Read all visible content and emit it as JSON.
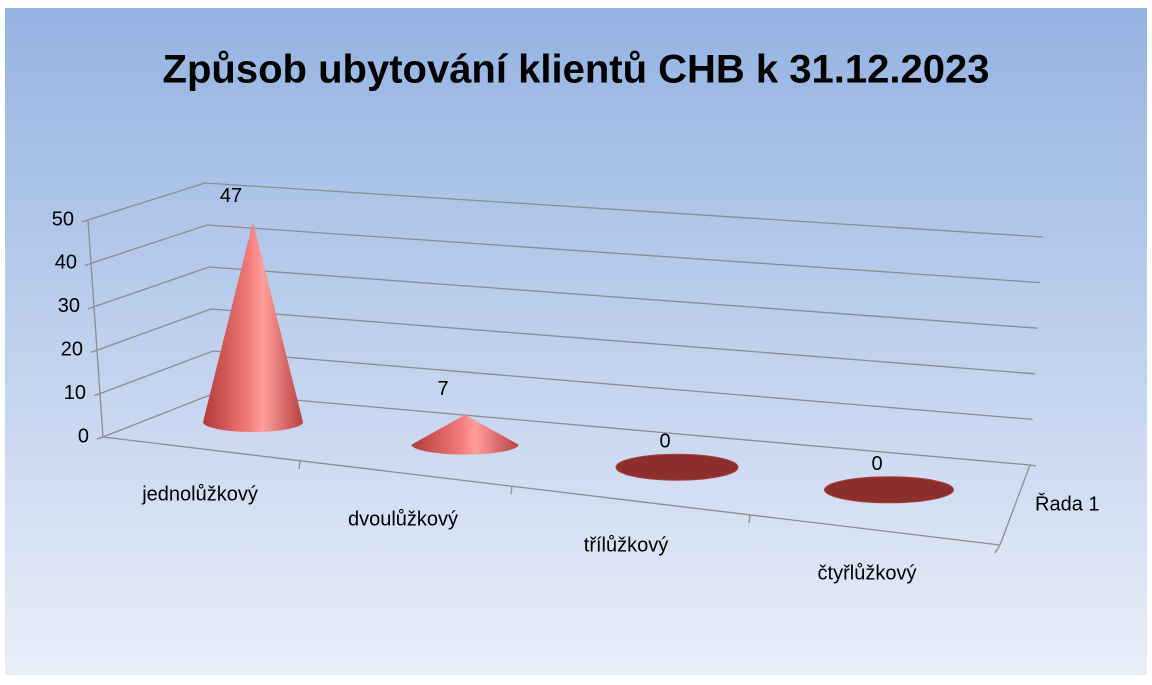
{
  "chart_data": {
    "type": "cone3d",
    "title": "Způsob ubytování klientů CHB  k 31.12.2023",
    "categories": [
      "jednolůžkový",
      "dvoulůžkový",
      "třílůžkový",
      "čtyřlůžkový"
    ],
    "series": [
      {
        "name": "Řada 1",
        "color": "#c0504d",
        "values": [
          47,
          7,
          0,
          0
        ]
      }
    ],
    "ylim": [
      0,
      50
    ],
    "yticks": [
      0,
      10,
      20,
      30,
      40,
      50
    ],
    "grid": true
  }
}
